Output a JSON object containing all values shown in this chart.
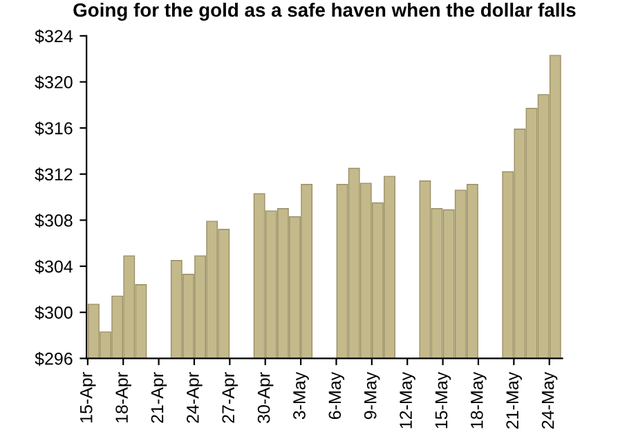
{
  "chart_data": {
    "type": "bar",
    "title": "Going for the gold as a safe haven when the dollar falls",
    "categories": [
      "15-Apr",
      null,
      null,
      "18-Apr",
      null,
      null,
      "21-Apr",
      null,
      null,
      "24-Apr",
      null,
      null,
      "27-Apr",
      null,
      null,
      "30-Apr",
      null,
      null,
      "3-May",
      null,
      null,
      "6-May",
      null,
      null,
      "9-May",
      null,
      null,
      "12-May",
      null,
      null,
      "15-May",
      null,
      null,
      "18-May",
      null,
      null,
      "21-May",
      null,
      null,
      "24-May"
    ],
    "values": [
      300.7,
      298.3,
      301.4,
      304.9,
      302.4,
      null,
      null,
      304.5,
      303.3,
      304.9,
      307.9,
      307.2,
      null,
      null,
      310.3,
      308.8,
      309.0,
      308.3,
      311.1,
      null,
      null,
      311.1,
      312.5,
      311.2,
      309.5,
      311.8,
      null,
      null,
      311.4,
      309.0,
      308.9,
      310.6,
      311.1,
      null,
      null,
      312.2,
      315.9,
      317.7,
      318.9,
      322.3
    ],
    "color": "#c4b98a",
    "ylim": [
      296,
      324
    ],
    "yticks": [
      {
        "value": 296,
        "label": "$296"
      },
      {
        "value": 300,
        "label": "$300"
      },
      {
        "value": 304,
        "label": "$304"
      },
      {
        "value": 308,
        "label": "$308"
      },
      {
        "value": 312,
        "label": "$312"
      },
      {
        "value": 316,
        "label": "$316"
      },
      {
        "value": 320,
        "label": "$320"
      },
      {
        "value": 324,
        "label": "$324"
      }
    ],
    "grid": false
  }
}
